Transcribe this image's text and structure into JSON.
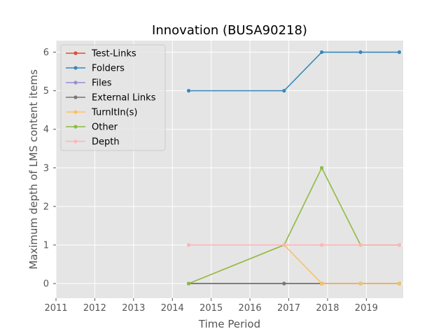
{
  "chart_data": {
    "type": "line",
    "title": "Innovation (BUSA90218)",
    "xlabel": "Time Period",
    "ylabel": "Maximum depth of LMS content items",
    "xlim": [
      2011,
      2019.95
    ],
    "ylim": [
      -0.38,
      6.3
    ],
    "x_ticks": [
      2011,
      2012,
      2013,
      2014,
      2015,
      2016,
      2017,
      2018,
      2019
    ],
    "y_ticks": [
      0,
      1,
      2,
      3,
      4,
      5,
      6
    ],
    "x_tick_labels": [
      "2011",
      "2012",
      "2013",
      "2014",
      "2015",
      "2016",
      "2017",
      "2018",
      "2019"
    ],
    "y_tick_labels": [
      "0",
      "1",
      "2",
      "3",
      "4",
      "5",
      "6"
    ],
    "x": [
      2014.42,
      2016.88,
      2017.85,
      2018.85,
      2019.85
    ],
    "grid": true,
    "legend_position": "upper-left",
    "series": [
      {
        "name": "Test-Links",
        "color": "#E24A33",
        "values": [
          0,
          0,
          0,
          0,
          0
        ]
      },
      {
        "name": "Folders",
        "color": "#348ABD",
        "values": [
          5,
          5,
          6,
          6,
          6
        ]
      },
      {
        "name": "Files",
        "color": "#988ED5",
        "values": [
          0,
          0,
          0,
          0,
          0
        ]
      },
      {
        "name": "External Links",
        "color": "#777777",
        "values": [
          0,
          0,
          0,
          0,
          0
        ]
      },
      {
        "name": "TurnItIn(s)",
        "color": "#FBC15E",
        "values": [
          0,
          1,
          0,
          0,
          0
        ]
      },
      {
        "name": "Other",
        "color": "#8EBA42",
        "values": [
          0,
          1,
          3,
          1,
          1
        ]
      },
      {
        "name": "Depth",
        "color": "#FFB5B8",
        "values": [
          1,
          1,
          1,
          1,
          1
        ]
      }
    ]
  }
}
